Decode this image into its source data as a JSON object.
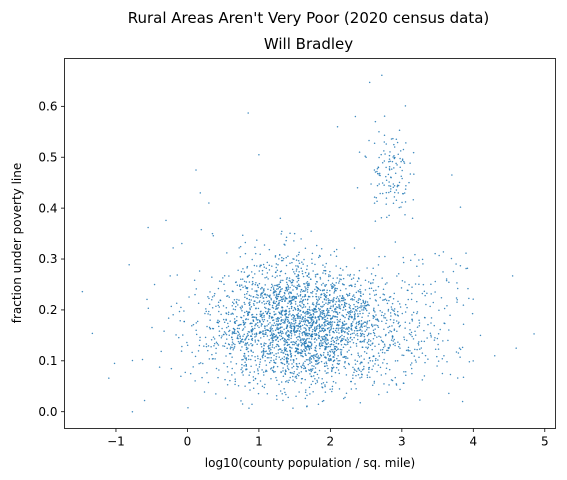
{
  "chart_data": {
    "type": "scatter",
    "title": "Rural Areas Aren't Very Poor (2020 census data)",
    "subtitle": "Will Bradley",
    "xlabel": "log10(county population / sq. mile)",
    "ylabel": "fraction under poverty line",
    "xlim": [
      -1.72,
      5.15
    ],
    "ylim": [
      -0.033,
      0.694
    ],
    "xticks": [
      -1,
      0,
      1,
      2,
      3,
      4,
      5
    ],
    "yticks": [
      0.0,
      0.1,
      0.2,
      0.3,
      0.4,
      0.5,
      0.6
    ],
    "ytick_labels": [
      "0.0",
      "0.1",
      "0.2",
      "0.3",
      "0.4",
      "0.5",
      "0.6"
    ],
    "point_color": "#1f77b4",
    "n_points_approx": 3100,
    "points_sample": [
      [
        -1.47,
        0.236
      ],
      [
        -1.33,
        0.154
      ],
      [
        -1.1,
        0.066
      ],
      [
        -1.02,
        0.095
      ],
      [
        -0.77,
        0.0
      ],
      [
        -0.6,
        0.022
      ],
      [
        -0.55,
        0.362
      ],
      [
        -0.46,
        0.25
      ],
      [
        -0.3,
        0.376
      ],
      [
        -0.2,
        0.322
      ],
      [
        0.12,
        0.475
      ],
      [
        0.18,
        0.43
      ],
      [
        0.3,
        0.41
      ],
      [
        0.35,
        0.35
      ],
      [
        0.85,
        0.587
      ],
      [
        1.0,
        0.505
      ],
      [
        1.05,
        0.05
      ],
      [
        1.3,
        0.38
      ],
      [
        1.5,
        0.35
      ],
      [
        2.1,
        0.56
      ],
      [
        2.35,
        0.58
      ],
      [
        2.38,
        0.44
      ],
      [
        2.5,
        0.5
      ],
      [
        2.55,
        0.647
      ],
      [
        2.63,
        0.57
      ],
      [
        2.68,
        0.55
      ],
      [
        2.72,
        0.661
      ],
      [
        2.78,
        0.48
      ],
      [
        2.85,
        0.46
      ],
      [
        2.9,
        0.52
      ],
      [
        2.95,
        0.43
      ],
      [
        3.05,
        0.601
      ],
      [
        3.1,
        0.45
      ],
      [
        3.15,
        0.38
      ],
      [
        3.7,
        0.465
      ],
      [
        3.82,
        0.402
      ],
      [
        3.85,
        0.02
      ],
      [
        4.1,
        0.15
      ],
      [
        4.3,
        0.11
      ],
      [
        4.55,
        0.267
      ],
      [
        4.6,
        0.125
      ],
      [
        4.85,
        0.153
      ]
    ]
  }
}
